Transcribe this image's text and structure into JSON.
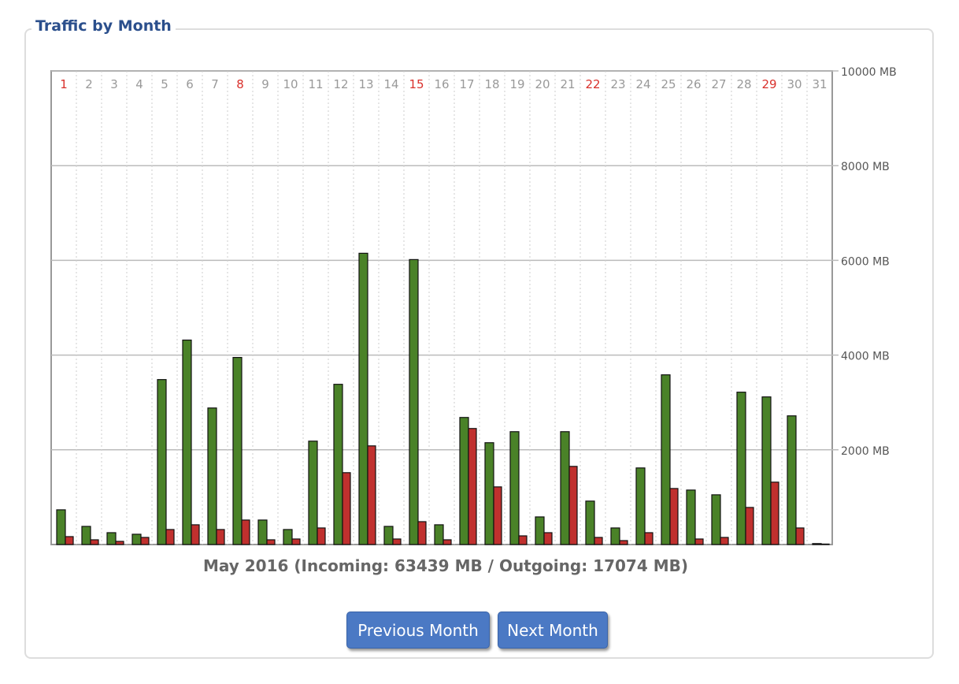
{
  "panel_title": "Traffic by Month",
  "caption": "May 2016 (Incoming: 63439 MB / Outgoing: 17074 MB)",
  "buttons": {
    "previous": "Previous Month",
    "next": "Next Month"
  },
  "colors": {
    "incoming": "#4a8228",
    "outgoing": "#c0302e",
    "weekend_label": "#d9302b",
    "day_label": "#999999"
  },
  "chart_data": {
    "type": "bar",
    "title": "Traffic by Month",
    "categories": [
      "1",
      "2",
      "3",
      "4",
      "5",
      "6",
      "7",
      "8",
      "9",
      "10",
      "11",
      "12",
      "13",
      "14",
      "15",
      "16",
      "17",
      "18",
      "19",
      "20",
      "21",
      "22",
      "23",
      "24",
      "25",
      "26",
      "27",
      "28",
      "29",
      "30",
      "31"
    ],
    "highlighted_days": [
      "1",
      "8",
      "15",
      "22",
      "29"
    ],
    "series": [
      {
        "name": "Incoming",
        "values": [
          733,
          383,
          250,
          217,
          3483,
          4317,
          2883,
          3950,
          517,
          317,
          2183,
          3383,
          6150,
          383,
          6017,
          417,
          2683,
          2150,
          2383,
          583,
          2383,
          917,
          350,
          1617,
          3583,
          1150,
          1050,
          3217,
          3117,
          2717,
          20
        ]
      },
      {
        "name": "Outgoing",
        "values": [
          167,
          100,
          67,
          150,
          317,
          417,
          317,
          517,
          100,
          117,
          350,
          1517,
          2083,
          117,
          483,
          100,
          2450,
          1217,
          183,
          250,
          1650,
          150,
          83,
          250,
          1183,
          117,
          150,
          783,
          1317,
          350,
          10
        ]
      }
    ],
    "ylim": [
      0,
      10000
    ],
    "yticks": [
      "2000 MB",
      "4000 MB",
      "6000 MB",
      "8000 MB",
      "10000 MB"
    ],
    "ytick_values": [
      2000,
      4000,
      6000,
      8000,
      10000
    ],
    "grid": true
  }
}
